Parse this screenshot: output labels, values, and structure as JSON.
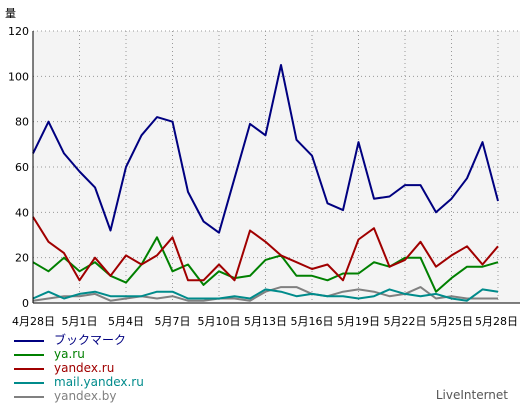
{
  "chart_data": {
    "type": "line",
    "ylabel": "量",
    "ylim": [
      0,
      120
    ],
    "yticks": [
      0,
      20,
      40,
      60,
      80,
      100,
      120
    ],
    "grid": true,
    "legend_position": "bottom-left",
    "xtick_labels": [
      "4月28日",
      "5月1日",
      "5月4日",
      "5月7日",
      "5月10日",
      "5月13日",
      "5月16日",
      "5月19日",
      "5月22日",
      "5月25日",
      "5月28日"
    ],
    "x": [
      "4月28日",
      "4月29日",
      "4月30日",
      "5月1日",
      "5月2日",
      "5月3日",
      "5月4日",
      "5月5日",
      "5月6日",
      "5月7日",
      "5月8日",
      "5月9日",
      "5月10日",
      "5月11日",
      "5月12日",
      "5月13日",
      "5月14日",
      "5月15日",
      "5月16日",
      "5月17日",
      "5月18日",
      "5月19日",
      "5月20日",
      "5月21日",
      "5月22日",
      "5月23日",
      "5月24日",
      "5月25日",
      "5月26日",
      "5月27日",
      "5月28日"
    ],
    "series": [
      {
        "name": "ブックマーク",
        "color": "#000080",
        "values": [
          66,
          80,
          66,
          58,
          51,
          32,
          60,
          74,
          82,
          80,
          49,
          36,
          31,
          55,
          79,
          74,
          105,
          72,
          65,
          44,
          41,
          71,
          46,
          47,
          52,
          52,
          40,
          46,
          55,
          71,
          45
        ]
      },
      {
        "name": "ya.ru",
        "color": "#008000",
        "values": [
          18,
          14,
          20,
          14,
          18,
          12,
          9,
          17,
          29,
          14,
          17,
          8,
          14,
          11,
          12,
          19,
          21,
          12,
          12,
          10,
          13,
          13,
          18,
          16,
          20,
          20,
          5,
          11,
          16,
          16,
          18
        ]
      },
      {
        "name": "yandex.ru",
        "color": "#a00000",
        "values": [
          38,
          27,
          22,
          10,
          20,
          12,
          21,
          17,
          21,
          29,
          10,
          10,
          17,
          10,
          32,
          27,
          21,
          18,
          15,
          17,
          10,
          28,
          33,
          16,
          19,
          27,
          16,
          21,
          25,
          17,
          25
        ]
      },
      {
        "name": "mail.yandex.ru",
        "color": "#008b8b",
        "values": [
          2,
          5,
          2,
          4,
          5,
          3,
          3,
          3,
          5,
          5,
          2,
          2,
          2,
          3,
          2,
          6,
          5,
          3,
          4,
          3,
          3,
          2,
          3,
          6,
          4,
          3,
          4,
          2,
          1,
          6,
          5
        ]
      },
      {
        "name": "yandex.by",
        "color": "#808080",
        "values": [
          1,
          2,
          3,
          3,
          4,
          1,
          2,
          3,
          2,
          3,
          1,
          1,
          2,
          2,
          1,
          5,
          7,
          7,
          4,
          3,
          5,
          6,
          5,
          3,
          4,
          7,
          2,
          3,
          2,
          2,
          2
        ]
      }
    ]
  },
  "credit": "LiveInternet"
}
